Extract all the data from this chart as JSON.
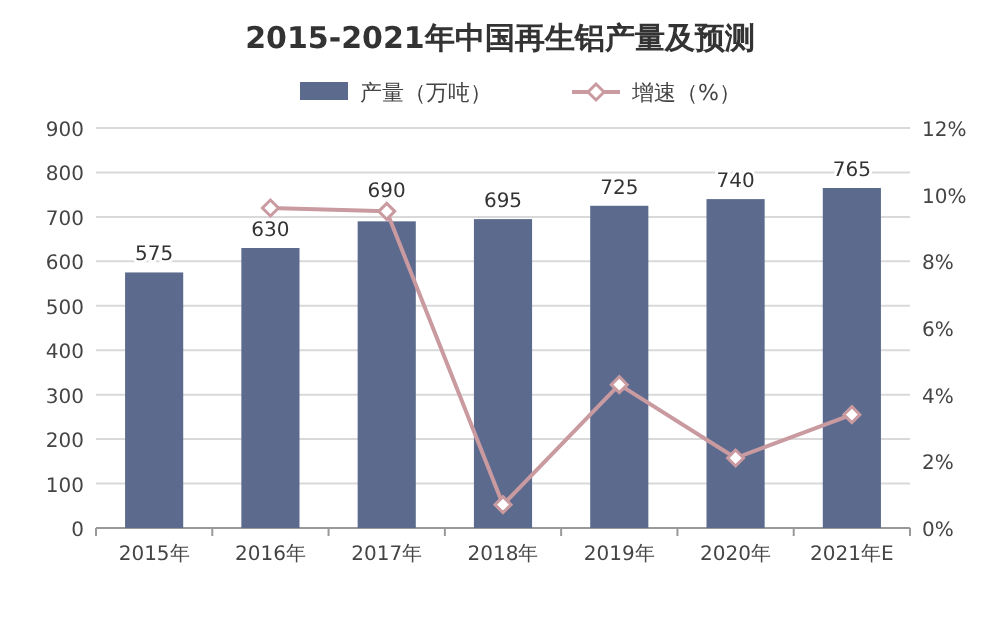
{
  "chart_data": {
    "type": "bar",
    "title": "2015-2021年中国再生铝产量及预测",
    "categories": [
      "2015年",
      "2016年",
      "2017年",
      "2018年",
      "2019年",
      "2020年",
      "2021年E"
    ],
    "series": [
      {
        "name": "产量（万吨）",
        "type": "bar",
        "color": "#5c6a8e",
        "values": [
          575,
          630,
          690,
          695,
          725,
          740,
          765
        ],
        "value_labels": [
          "575",
          "630",
          "690",
          "695",
          "725",
          "740",
          "765"
        ]
      },
      {
        "name": "增速（%）",
        "type": "line",
        "axis": "y2",
        "color": "#c99aa0",
        "marker": "diamond",
        "values": [
          null,
          9.6,
          9.5,
          0.7,
          4.3,
          2.1,
          3.4
        ]
      }
    ],
    "ylim": [
      0,
      900
    ],
    "yticks": [
      0,
      100,
      200,
      300,
      400,
      500,
      600,
      700,
      800,
      900
    ],
    "y2lim": [
      0,
      12
    ],
    "y2ticks": [
      {
        "value": 0,
        "label": "0%"
      },
      {
        "value": 2,
        "label": "2%"
      },
      {
        "value": 4,
        "label": "4%"
      },
      {
        "value": 6,
        "label": "6%"
      },
      {
        "value": 8,
        "label": "8%"
      },
      {
        "value": 10,
        "label": "10%"
      },
      {
        "value": 12,
        "label": "12%"
      }
    ],
    "grid": "y",
    "legend": "top"
  }
}
